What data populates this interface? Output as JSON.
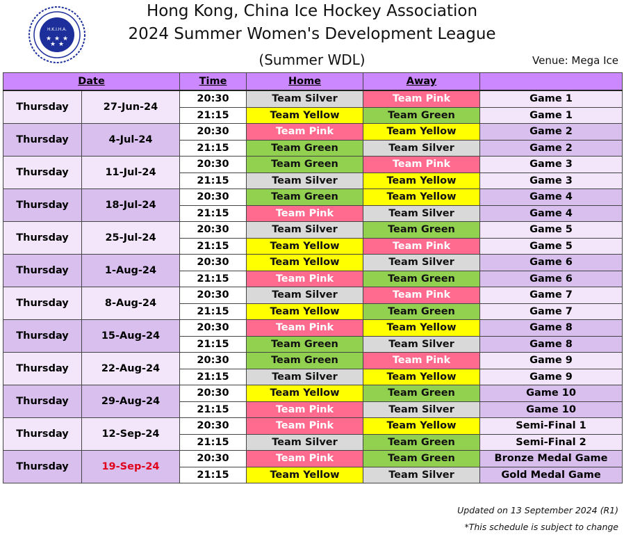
{
  "header": {
    "line1": "Hong Kong, China Ice Hockey Association",
    "line2": "2024 Summer Women's Development League",
    "line3": "(Summer WDL)",
    "venue": "Venue: Mega Ice",
    "logo_text": "H.K.I.H.A."
  },
  "columns": [
    "Date",
    "Time",
    "Home",
    "Away",
    ""
  ],
  "colors": {
    "Team Silver": "#d9d9d9",
    "Team Pink": "#ff6b8e",
    "Team Yellow": "#ffff00",
    "Team Green": "#92d050",
    "header": "#cc88ff"
  },
  "schedule": [
    {
      "day": "Thursday",
      "date": "27-Jun-24",
      "games": [
        {
          "time": "20:30",
          "home": "Team Silver",
          "away": "Team Pink",
          "game": "Game 1"
        },
        {
          "time": "21:15",
          "home": "Team Yellow",
          "away": "Team Green",
          "game": "Game 1"
        }
      ]
    },
    {
      "day": "Thursday",
      "date": "4-Jul-24",
      "games": [
        {
          "time": "20:30",
          "home": "Team Pink",
          "away": "Team Yellow",
          "game": "Game 2"
        },
        {
          "time": "21:15",
          "home": "Team Green",
          "away": "Team Silver",
          "game": "Game 2"
        }
      ]
    },
    {
      "day": "Thursday",
      "date": "11-Jul-24",
      "games": [
        {
          "time": "20:30",
          "home": "Team Green",
          "away": "Team Pink",
          "game": "Game 3"
        },
        {
          "time": "21:15",
          "home": "Team Silver",
          "away": "Team Yellow",
          "game": "Game 3"
        }
      ]
    },
    {
      "day": "Thursday",
      "date": "18-Jul-24",
      "games": [
        {
          "time": "20:30",
          "home": "Team Green",
          "away": "Team Yellow",
          "game": "Game 4"
        },
        {
          "time": "21:15",
          "home": "Team Pink",
          "away": "Team Silver",
          "game": "Game 4"
        }
      ]
    },
    {
      "day": "Thursday",
      "date": "25-Jul-24",
      "games": [
        {
          "time": "20:30",
          "home": "Team Silver",
          "away": "Team Green",
          "game": "Game 5"
        },
        {
          "time": "21:15",
          "home": "Team Yellow",
          "away": "Team Pink",
          "game": "Game 5"
        }
      ]
    },
    {
      "day": "Thursday",
      "date": "1-Aug-24",
      "games": [
        {
          "time": "20:30",
          "home": "Team Yellow",
          "away": "Team Silver",
          "game": "Game 6"
        },
        {
          "time": "21:15",
          "home": "Team Pink",
          "away": "Team Green",
          "game": "Game 6"
        }
      ]
    },
    {
      "day": "Thursday",
      "date": "8-Aug-24",
      "games": [
        {
          "time": "20:30",
          "home": "Team Silver",
          "away": "Team Pink",
          "game": "Game 7"
        },
        {
          "time": "21:15",
          "home": "Team Yellow",
          "away": "Team Green",
          "game": "Game 7"
        }
      ]
    },
    {
      "day": "Thursday",
      "date": "15-Aug-24",
      "games": [
        {
          "time": "20:30",
          "home": "Team Pink",
          "away": "Team Yellow",
          "game": "Game 8"
        },
        {
          "time": "21:15",
          "home": "Team Green",
          "away": "Team Silver",
          "game": "Game 8"
        }
      ]
    },
    {
      "day": "Thursday",
      "date": "22-Aug-24",
      "games": [
        {
          "time": "20:30",
          "home": "Team Green",
          "away": "Team Pink",
          "game": "Game 9"
        },
        {
          "time": "21:15",
          "home": "Team Silver",
          "away": "Team Yellow",
          "game": "Game 9"
        }
      ]
    },
    {
      "day": "Thursday",
      "date": "29-Aug-24",
      "games": [
        {
          "time": "20:30",
          "home": "Team Yellow",
          "away": "Team Green",
          "game": "Game 10"
        },
        {
          "time": "21:15",
          "home": "Team Pink",
          "away": "Team Silver",
          "game": "Game 10"
        }
      ]
    },
    {
      "day": "Thursday",
      "date": "12-Sep-24",
      "games": [
        {
          "time": "20:30",
          "home": "Team Pink",
          "away": "Team Yellow",
          "game": "Semi-Final 1"
        },
        {
          "time": "21:15",
          "home": "Team Silver",
          "away": "Team Green",
          "game": "Semi-Final 2"
        }
      ]
    },
    {
      "day": "Thursday",
      "date": "19-Sep-24",
      "date_color": "#e0001b",
      "games": [
        {
          "time": "20:30",
          "home": "Team Pink",
          "away": "Team Green",
          "game": "Bronze Medal Game"
        },
        {
          "time": "21:15",
          "home": "Team Yellow",
          "away": "Team Silver",
          "game": "Gold Medal Game"
        }
      ]
    }
  ],
  "footer": {
    "updated": "Updated on 13 September 2024 (R1)",
    "note": "*This schedule is subject to change"
  }
}
